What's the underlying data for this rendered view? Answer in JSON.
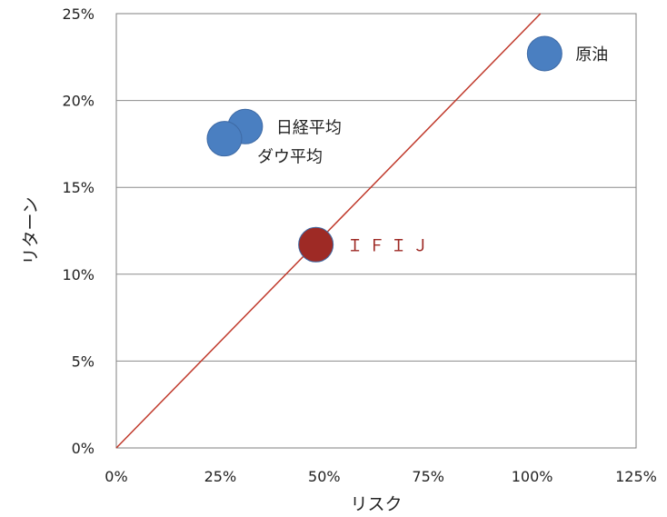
{
  "chart_data": {
    "type": "scatter",
    "xlabel": "リスク",
    "ylabel": "リターン",
    "xlim": [
      0,
      125
    ],
    "ylim": [
      0,
      25
    ],
    "x_ticks": [
      0,
      25,
      50,
      75,
      100,
      125
    ],
    "y_ticks": [
      0,
      5,
      10,
      15,
      20,
      25
    ],
    "x_tick_labels": [
      "0%",
      "25%",
      "50%",
      "75%",
      "100%",
      "125%"
    ],
    "y_tick_labels": [
      "0%",
      "5%",
      "10%",
      "15%",
      "20%",
      "25%"
    ],
    "grid": "horizontal",
    "points": [
      {
        "label": "原油",
        "x": 103,
        "y": 22.7,
        "color": "#4a7fc1",
        "label_color": "#222222",
        "label_pos": "right"
      },
      {
        "label": "日経平均",
        "x": 31,
        "y": 18.5,
        "color": "#4a7fc1",
        "label_color": "#222222",
        "label_pos": "right"
      },
      {
        "label": "ダウ平均",
        "x": 26,
        "y": 17.8,
        "color": "#4a7fc1",
        "label_color": "#222222",
        "label_pos": "below-right"
      },
      {
        "label": "ＩＦＩＪ",
        "x": 48,
        "y": 11.7,
        "color": "#9e2a25",
        "label_color": "#9e2a25",
        "label_pos": "right"
      }
    ],
    "line": {
      "x": [
        0,
        102
      ],
      "y": [
        0,
        25
      ],
      "color": "#c0392b"
    }
  }
}
